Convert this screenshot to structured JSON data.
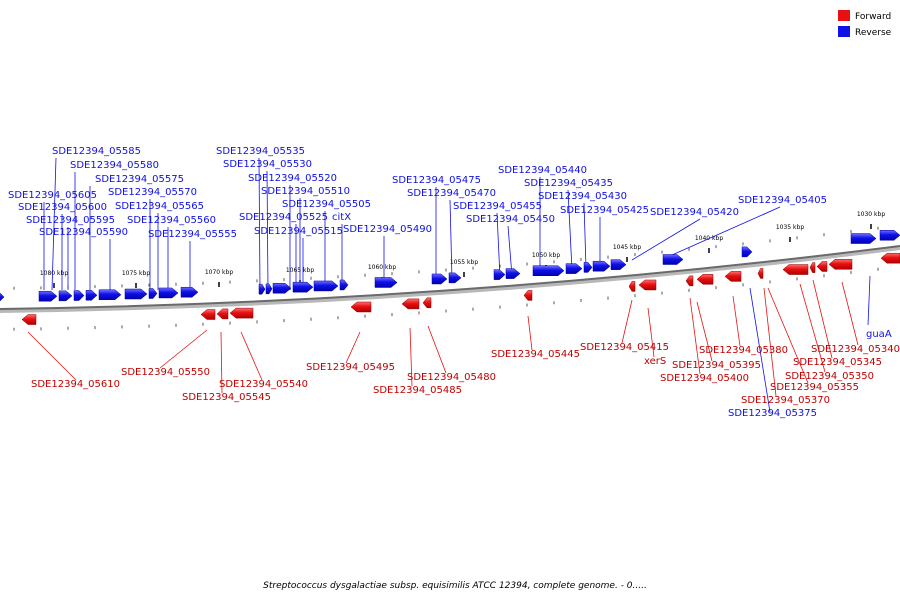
{
  "legend": {
    "forward_label": "Forward",
    "reverse_label": "Reverse",
    "forward_color": "#e81010",
    "reverse_color": "#1010e8"
  },
  "caption": "Streptococcus dysgalactiae subsp. equisimilis ATCC 12394, complete genome. - 0.....",
  "ticks": [
    {
      "label": "1080 kbp"
    },
    {
      "label": "1075 kbp"
    },
    {
      "label": "1070 kbp"
    },
    {
      "label": "1065 kbp"
    },
    {
      "label": "1060 kbp"
    },
    {
      "label": "1055 kbp"
    },
    {
      "label": "1050 kbp"
    },
    {
      "label": "1045 kbp"
    },
    {
      "label": "1040 kbp"
    },
    {
      "label": "1035 kbp"
    },
    {
      "label": "1030 kbp"
    }
  ],
  "genes_reverse": [
    "SDE12394_05585",
    "SDE12394_05580",
    "SDE12394_05575",
    "SDE12394_05570",
    "SDE12394_05605",
    "SDE12394_05565",
    "SDE12394_05600",
    "SDE12394_05595",
    "SDE12394_05560",
    "SDE12394_05590",
    "SDE12394_05555",
    "SDE12394_05535",
    "SDE12394_05530",
    "SDE12394_05520",
    "SDE12394_05510",
    "SDE12394_05505",
    "SDE12394_05525",
    "citX",
    "SDE12394_05515",
    "SDE12394_05490",
    "SDE12394_05475",
    "SDE12394_05470",
    "SDE12394_05455",
    "SDE12394_05450",
    "SDE12394_05440",
    "SDE12394_05435",
    "SDE12394_05430",
    "SDE12394_05425",
    "SDE12394_05420",
    "SDE12394_05405",
    "guaA",
    "SDE12394_05375"
  ],
  "genes_forward": [
    "SDE12394_05610",
    "SDE12394_05550",
    "SDE12394_05540",
    "SDE12394_05545",
    "SDE12394_05495",
    "SDE12394_05480",
    "SDE12394_05485",
    "SDE12394_05445",
    "SDE12394_05415",
    "xerS",
    "SDE12394_05395",
    "SDE12394_05400",
    "SDE12394_05380",
    "SDE12394_05370",
    "SDE12394_05355",
    "SDE12394_05350",
    "SDE12394_05345",
    "SDE12394_05340"
  ]
}
